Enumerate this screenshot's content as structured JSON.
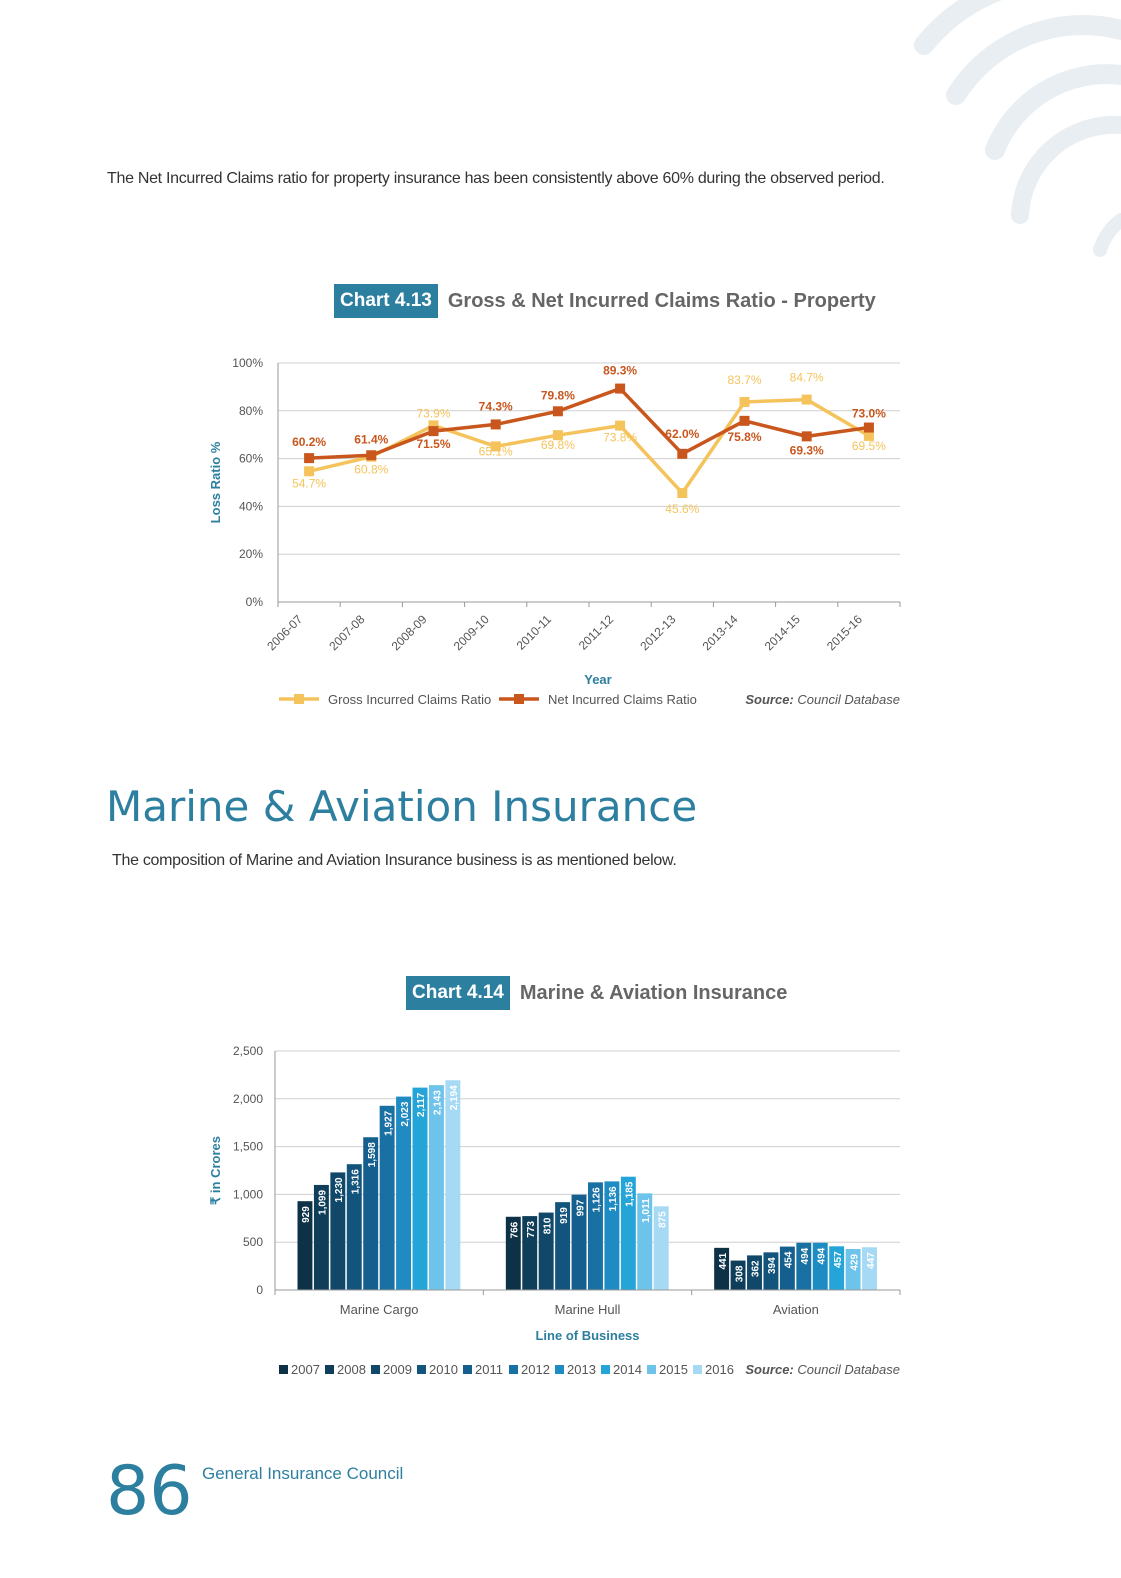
{
  "intro_text": "The Net Incurred Claims ratio for property insurance has been consistently above 60% during the observed period.",
  "charts": {
    "chart1": {
      "badge": "Chart 4.13",
      "title": "Gross & Net Incurred Claims Ratio - Property",
      "source_label": "Source:",
      "source_value": "Council Database"
    },
    "chart2": {
      "badge": "Chart 4.14",
      "title": "Marine & Aviation Insurance",
      "source_label": "Source:",
      "source_value": "Council Database"
    }
  },
  "section": {
    "title": "Marine & Aviation Insurance",
    "text": "The composition of Marine and Aviation Insurance business is as mentioned below."
  },
  "footer": {
    "page_number": "86",
    "org": "General Insurance Council"
  },
  "colors": {
    "brand": "#2d7fa0",
    "gross": "#f5c35b",
    "net": "#c9561d",
    "years": [
      "#0d3147",
      "#0f3e5a",
      "#11486a",
      "#13547c",
      "#155f8e",
      "#1970a3",
      "#1f8bc3",
      "#25a4d7",
      "#6ec3ea",
      "#a6d9f3"
    ]
  },
  "chart_data": [
    {
      "type": "line",
      "title": "Gross & Net Incurred Claims Ratio - Property",
      "xlabel": "Year",
      "ylabel": "Loss Ratio %",
      "ylim": [
        0,
        100
      ],
      "yticks": [
        "0%",
        "20%",
        "40%",
        "60%",
        "80%",
        "100%"
      ],
      "grid": true,
      "legend": "bottom-left",
      "categories": [
        "2006-07",
        "2007-08",
        "2008-09",
        "2009-10",
        "2010-11",
        "2011-12",
        "2012-13",
        "2013-14",
        "2014-15",
        "2015-16"
      ],
      "series": [
        {
          "name": "Gross Incurred Claims Ratio",
          "values": [
            54.7,
            60.8,
            73.9,
            65.1,
            69.8,
            73.8,
            45.6,
            83.7,
            84.7,
            69.5
          ],
          "labels": [
            "54.7%",
            "60.8%",
            "73.9%",
            "65.1%",
            "69.8%",
            "73.8%",
            "45.6%",
            "83.7%",
            "84.7%",
            "69.5%"
          ]
        },
        {
          "name": "Net Incurred Claims Ratio",
          "values": [
            60.2,
            61.4,
            71.5,
            74.3,
            79.8,
            89.3,
            62.0,
            75.8,
            69.3,
            73.0
          ],
          "labels": [
            "60.2%",
            "61.4%",
            "71.5%",
            "74.3%",
            "79.8%",
            "89.3%",
            "62.0%",
            "75.8%",
            "69.3%",
            "73.0%"
          ]
        }
      ]
    },
    {
      "type": "bar",
      "title": "Marine & Aviation Insurance",
      "xlabel": "Line of Business",
      "ylabel": "₹ in Crores",
      "ylim": [
        0,
        2500
      ],
      "yticks": [
        "0",
        "500",
        "1,000",
        "1,500",
        "2,000",
        "2,500"
      ],
      "grid": true,
      "legend": "bottom-left",
      "categories": [
        "Marine Cargo",
        "Marine Hull",
        "Aviation"
      ],
      "series": [
        {
          "name": "2007",
          "values": [
            929,
            766,
            441
          ],
          "labels": [
            "929",
            "766",
            "441"
          ]
        },
        {
          "name": "2008",
          "values": [
            1099,
            773,
            308
          ],
          "labels": [
            "1,099",
            "773",
            "308"
          ]
        },
        {
          "name": "2009",
          "values": [
            1230,
            810,
            362
          ],
          "labels": [
            "1,230",
            "810",
            "362"
          ]
        },
        {
          "name": "2010",
          "values": [
            1316,
            919,
            394
          ],
          "labels": [
            "1,316",
            "919",
            "394"
          ]
        },
        {
          "name": "2011",
          "values": [
            1598,
            997,
            454
          ],
          "labels": [
            "1,598",
            "997",
            "454"
          ]
        },
        {
          "name": "2012",
          "values": [
            1927,
            1126,
            494
          ],
          "labels": [
            "1,927",
            "1,126",
            "494"
          ]
        },
        {
          "name": "2013",
          "values": [
            2023,
            1136,
            494
          ],
          "labels": [
            "2,023",
            "1,136",
            "494"
          ]
        },
        {
          "name": "2014",
          "values": [
            2117,
            1185,
            457
          ],
          "labels": [
            "2,117",
            "1,185",
            "457"
          ]
        },
        {
          "name": "2015",
          "values": [
            2143,
            1011,
            429
          ],
          "labels": [
            "2,143",
            "1,011",
            "429"
          ]
        },
        {
          "name": "2016",
          "values": [
            2194,
            875,
            447
          ],
          "labels": [
            "2,194",
            "875",
            "447"
          ]
        }
      ]
    }
  ]
}
